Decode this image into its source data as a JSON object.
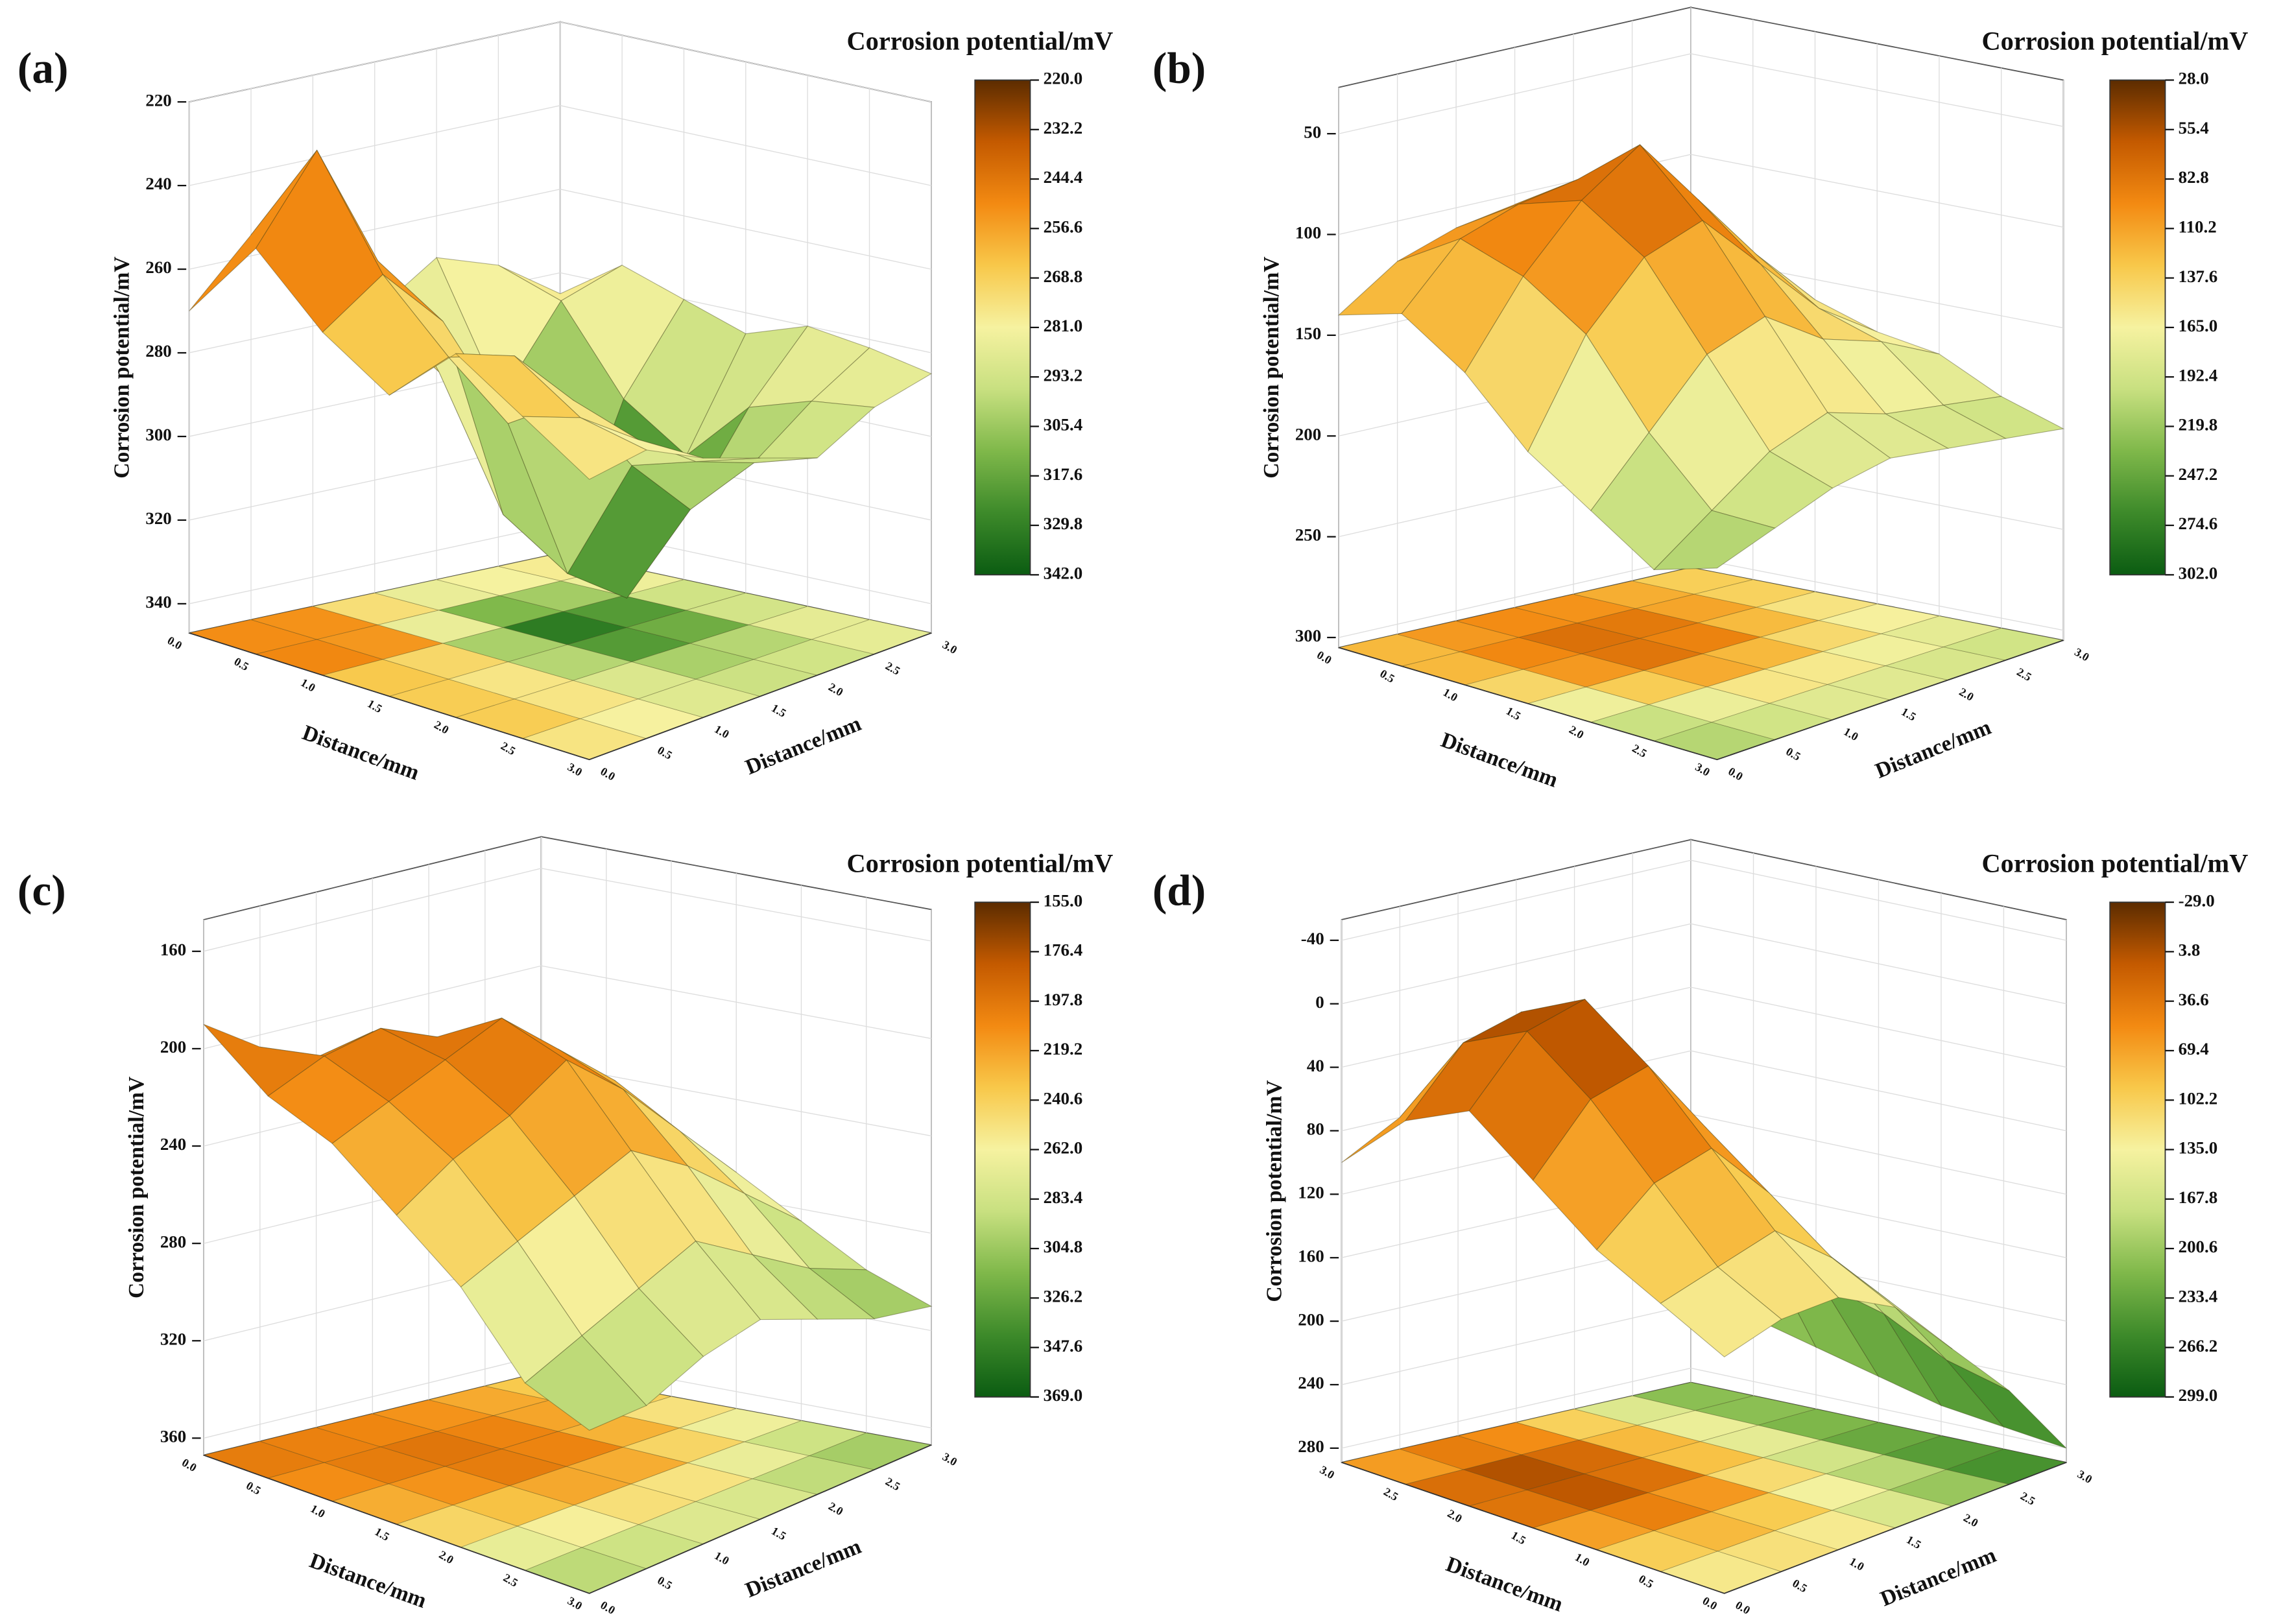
{
  "chart_data": [
    {
      "type": "surface3d",
      "label": "(a)",
      "zlabel": "Corrosion potential/mV",
      "xlabel": "Distance/mm",
      "ylabel": "Distance/mm",
      "colorbar_title": "Corrosion potential/mV",
      "xlim": [
        0,
        3
      ],
      "xticks": [
        {
          "value": 0,
          "label": "0.0"
        },
        0.5,
        {
          "value": 1,
          "label": "1.0"
        },
        1.5,
        {
          "value": 2,
          "label": "2.0"
        },
        2.5,
        {
          "value": 3,
          "label": "3.0"
        }
      ],
      "ylim": [
        0,
        3
      ],
      "yticks": [
        {
          "value": 0,
          "label": "0.0"
        },
        0.5,
        {
          "value": 1,
          "label": "1.0"
        },
        1.5,
        {
          "value": 2,
          "label": "2.0"
        },
        2.5,
        {
          "value": 3,
          "label": "3.0"
        }
      ],
      "zlim": [
        347,
        220
      ],
      "zticks": [
        220,
        240,
        260,
        280,
        300,
        320,
        340
      ],
      "clim": [
        220,
        342
      ],
      "cticks": [
        {
          "value": 220,
          "label": "220.0"
        },
        232.2,
        244.4,
        256.6,
        268.8,
        {
          "value": 281,
          "label": "281.0"
        },
        293.2,
        305.4,
        317.6,
        329.8,
        {
          "value": 342,
          "label": "342.0"
        }
      ],
      "colorscale": [
        "#5c2c00",
        "#c45a00",
        "#f38a12",
        "#f8c84a",
        "#f6f2a0",
        "#c8e080",
        "#7fb84a",
        "#3d8a2a",
        "#0b5c12"
      ],
      "z": [
        [
          270,
          255,
          265,
          280,
          270,
          275,
          285
        ],
        [
          250,
          230,
          260,
          290,
          300,
          280,
          275
        ],
        [
          265,
          255,
          270,
          320,
          335,
          300,
          280
        ],
        [
          275,
          270,
          290,
          330,
          340,
          310,
          285
        ],
        [
          260,
          265,
          280,
          300,
          315,
          295,
          280
        ],
        [
          270,
          275,
          285,
          295,
          300,
          290,
          282
        ],
        [
          280,
          278,
          285,
          290,
          295,
          288,
          285
        ]
      ]
    },
    {
      "type": "surface3d",
      "label": "(b)",
      "zlabel": "Corrosion potential/mV",
      "xlabel": "Distance/mm",
      "ylabel": "Distance/mm",
      "colorbar_title": "Corrosion potential/mV",
      "xlim": [
        0,
        3
      ],
      "xticks": [
        {
          "value": 0,
          "label": "0.0"
        },
        0.5,
        {
          "value": 1,
          "label": "1.0"
        },
        1.5,
        {
          "value": 2,
          "label": "2.0"
        },
        2.5,
        {
          "value": 3,
          "label": "3.0"
        }
      ],
      "ylim": [
        0,
        3
      ],
      "yticks": [
        {
          "value": 0,
          "label": "0.0"
        },
        0.5,
        {
          "value": 1,
          "label": "1.0"
        },
        1.5,
        {
          "value": 2,
          "label": "2.0"
        },
        2.5,
        {
          "value": 3,
          "label": "3.0"
        }
      ],
      "zlim": [
        305,
        27
      ],
      "zticks": [
        50,
        100,
        150,
        200,
        250,
        300
      ],
      "clim": [
        28,
        302
      ],
      "cticks": [
        {
          "value": 28,
          "label": "28.0"
        },
        55.4,
        82.8,
        110.2,
        137.6,
        {
          "value": 165,
          "label": "165.0"
        },
        192.4,
        219.8,
        247.2,
        274.6,
        {
          "value": 302,
          "label": "302.0"
        }
      ],
      "colorscale": [
        "#5c2c00",
        "#c45a00",
        "#f38a12",
        "#f8c84a",
        "#f6f2a0",
        "#c8e080",
        "#7fb84a",
        "#3d8a2a",
        "#0b5c12"
      ],
      "z": [
        [
          140,
          120,
          110,
          105,
          115,
          130,
          150
        ],
        [
          130,
          100,
          90,
          85,
          100,
          120,
          145
        ],
        [
          150,
          110,
          80,
          60,
          95,
          130,
          160
        ],
        [
          180,
          130,
          100,
          90,
          120,
          150,
          170
        ],
        [
          200,
          170,
          140,
          130,
          150,
          160,
          175
        ],
        [
          220,
          200,
          180,
          170,
          180,
          185,
          190
        ],
        [
          210,
          200,
          190,
          185,
          190,
          195,
          200
        ]
      ]
    },
    {
      "type": "surface3d",
      "label": "(c)",
      "zlabel": "Corrosion potential/mV",
      "xlabel": "Distance/mm",
      "ylabel": "Distance/mm",
      "colorbar_title": "Corrosion potential/mV",
      "xlim": [
        0,
        3
      ],
      "xticks": [
        {
          "value": 0,
          "label": "0.0"
        },
        0.5,
        {
          "value": 1,
          "label": "1.0"
        },
        1.5,
        {
          "value": 2,
          "label": "2.0"
        },
        2.5,
        {
          "value": 3,
          "label": "3.0"
        }
      ],
      "ylim": [
        0,
        3
      ],
      "yticks": [
        {
          "value": 0,
          "label": "0.0"
        },
        0.5,
        {
          "value": 1,
          "label": "1.0"
        },
        1.5,
        {
          "value": 2,
          "label": "2.0"
        },
        2.5,
        {
          "value": 3,
          "label": "3.0"
        }
      ],
      "zlim": [
        367,
        147
      ],
      "zticks": [
        160,
        200,
        240,
        280,
        320,
        360
      ],
      "clim": [
        155,
        369
      ],
      "cticks": [
        {
          "value": 155,
          "label": "155.0"
        },
        176.4,
        197.8,
        219.2,
        240.6,
        {
          "value": 262,
          "label": "262.0"
        },
        283.4,
        304.8,
        326.2,
        347.6,
        {
          "value": 369,
          "label": "369.0"
        }
      ],
      "colorscale": [
        "#5c2c00",
        "#c45a00",
        "#f38a12",
        "#f8c84a",
        "#f6f2a0",
        "#c8e080",
        "#7fb84a",
        "#3d8a2a",
        "#0b5c12"
      ],
      "z": [
        [
          190,
          205,
          215,
          210,
          220,
          230,
          240
        ],
        [
          210,
          200,
          195,
          205,
          215,
          225,
          250
        ],
        [
          220,
          210,
          200,
          190,
          210,
          230,
          260
        ],
        [
          240,
          225,
          215,
          200,
          220,
          245,
          270
        ],
        [
          260,
          250,
          240,
          230,
          245,
          265,
          285
        ],
        [
          290,
          280,
          270,
          260,
          275,
          290,
          300
        ],
        [
          300,
          300,
          290,
          285,
          295,
          305,
          310
        ]
      ]
    },
    {
      "type": "surface3d",
      "label": "(d)",
      "zlabel": "Corrosion potential/mV",
      "xlabel": "Distance/mm",
      "ylabel": "Distance/mm",
      "colorbar_title": "Corrosion potential/mV",
      "xlim": [
        3,
        0
      ],
      "xticks": [
        {
          "value": 3,
          "label": "3.0"
        },
        2.5,
        {
          "value": 2,
          "label": "2.0"
        },
        1.5,
        {
          "value": 1,
          "label": "1.0"
        },
        0.5,
        {
          "value": 0,
          "label": "0.0"
        }
      ],
      "ylim": [
        0,
        3
      ],
      "yticks": [
        {
          "value": 0,
          "label": "0.0"
        },
        0.5,
        {
          "value": 1,
          "label": "1.0"
        },
        1.5,
        {
          "value": 2,
          "label": "2.0"
        },
        2.5,
        {
          "value": 3,
          "label": "3.0"
        }
      ],
      "zlim": [
        289,
        -53
      ],
      "zticks": [
        -40,
        0,
        40,
        80,
        120,
        160,
        200,
        240,
        280
      ],
      "clim": [
        -29,
        299
      ],
      "cticks": [
        {
          "value": -29,
          "label": "-29.0"
        },
        3.8,
        36.6,
        69.4,
        102.2,
        {
          "value": 135,
          "label": "135.0"
        },
        167.8,
        200.6,
        233.4,
        266.2,
        {
          "value": 299,
          "label": "299.0"
        }
      ],
      "colorscale": [
        "#5c2c00",
        "#c45a00",
        "#f38a12",
        "#f8c84a",
        "#f6f2a0",
        "#c8e080",
        "#7fb84a",
        "#3d8a2a",
        "#0b5c12"
      ],
      "z": [
        [
          100,
          80,
          60,
          90,
          140,
          190,
          230
        ],
        [
          60,
          20,
          10,
          60,
          120,
          180,
          240
        ],
        [
          40,
          0,
          -10,
          50,
          110,
          170,
          250
        ],
        [
          70,
          30,
          20,
          70,
          130,
          190,
          260
        ],
        [
          100,
          70,
          60,
          100,
          150,
          200,
          270
        ],
        [
          120,
          110,
          100,
          130,
          170,
          220,
          275
        ],
        [
          140,
          130,
          130,
          150,
          190,
          230,
          280
        ]
      ]
    }
  ]
}
